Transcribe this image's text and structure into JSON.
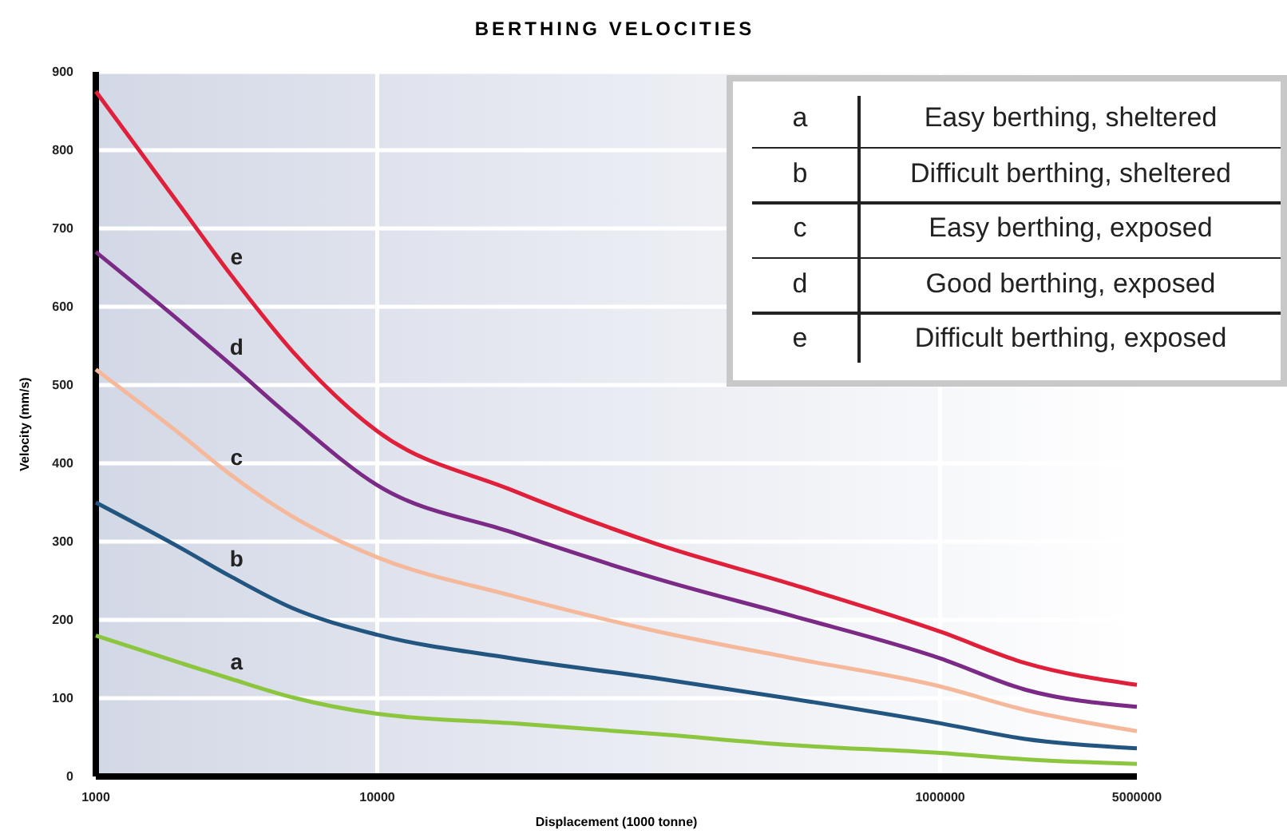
{
  "chart_data": {
    "type": "line",
    "title": "BERTHING VELOCITIES",
    "xlabel": "Displacement (1000 tonne)",
    "ylabel": "Velocity (mm/s)",
    "x": [
      1000,
      2000,
      3000,
      5000,
      10000,
      30000,
      100000,
      300000,
      1000000,
      2000000,
      5000000
    ],
    "series": [
      {
        "name": "a",
        "color": "#8cc63f",
        "values": [
          180,
          145,
          125,
          101,
          80,
          68,
          54,
          40,
          30,
          22,
          16
        ]
      },
      {
        "name": "b",
        "color": "#22557f",
        "values": [
          350,
          292,
          256,
          215,
          181,
          151,
          125,
          99,
          68,
          48,
          36
        ]
      },
      {
        "name": "c",
        "color": "#f5b89a",
        "values": [
          520,
          437,
          386,
          332,
          280,
          231,
          185,
          151,
          115,
          85,
          58
        ]
      },
      {
        "name": "d",
        "color": "#7b2a86",
        "values": [
          670,
          581,
          527,
          457,
          372,
          312,
          252,
          205,
          151,
          111,
          89
        ]
      },
      {
        "name": "e",
        "color": "#e0203a",
        "values": [
          875,
          728,
          642,
          543,
          441,
          366,
          296,
          245,
          185,
          145,
          117
        ]
      }
    ],
    "annotations": [
      "Easy berthing, sheltered",
      "Difficult berthing, sheltered",
      "Easy berthing, exposed",
      "Good berthing, exposed",
      "Difficult berthing, exposed"
    ],
    "log": "x",
    "xlim": [
      1000,
      5000000
    ],
    "xticks": [
      1000,
      10000,
      1000000,
      5000000
    ],
    "ylim": [
      0,
      900
    ],
    "yticks": [
      0,
      100,
      200,
      300,
      400,
      500,
      600,
      700,
      800,
      900
    ],
    "grid": true,
    "marker": "none",
    "line_style": "solid"
  }
}
